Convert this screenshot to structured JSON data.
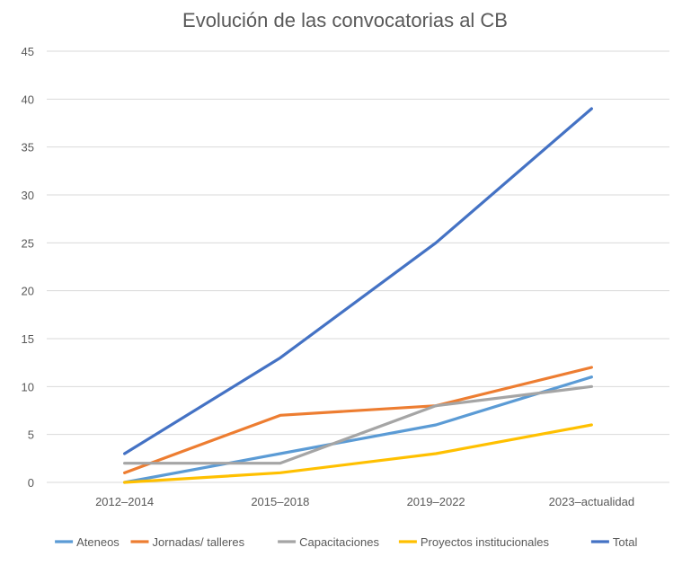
{
  "chart_data": {
    "type": "line",
    "title": "Evolución de las convocatorias al CB",
    "xlabel": "",
    "ylabel": "",
    "categories": [
      "2012–2014",
      "2015–2018",
      "2019–2022",
      "2023–actualidad"
    ],
    "ylim": [
      0,
      45
    ],
    "yticks": [
      0,
      5,
      10,
      15,
      20,
      25,
      30,
      35,
      40,
      45
    ],
    "grid": true,
    "legend_position": "bottom",
    "series": [
      {
        "name": "Ateneos",
        "color": "#5B9BD5",
        "values": [
          0,
          3,
          6,
          11
        ]
      },
      {
        "name": "Jornadas/ talleres",
        "color": "#ED7D31",
        "values": [
          1,
          7,
          8,
          12
        ]
      },
      {
        "name": "Capacitaciones",
        "color": "#A5A5A5",
        "values": [
          2,
          2,
          8,
          10
        ]
      },
      {
        "name": "Proyectos institucionales",
        "color": "#FFC000",
        "values": [
          0,
          1,
          3,
          6
        ]
      },
      {
        "name": "Total",
        "color": "#4472C4",
        "values": [
          3,
          13,
          25,
          39
        ]
      }
    ]
  }
}
